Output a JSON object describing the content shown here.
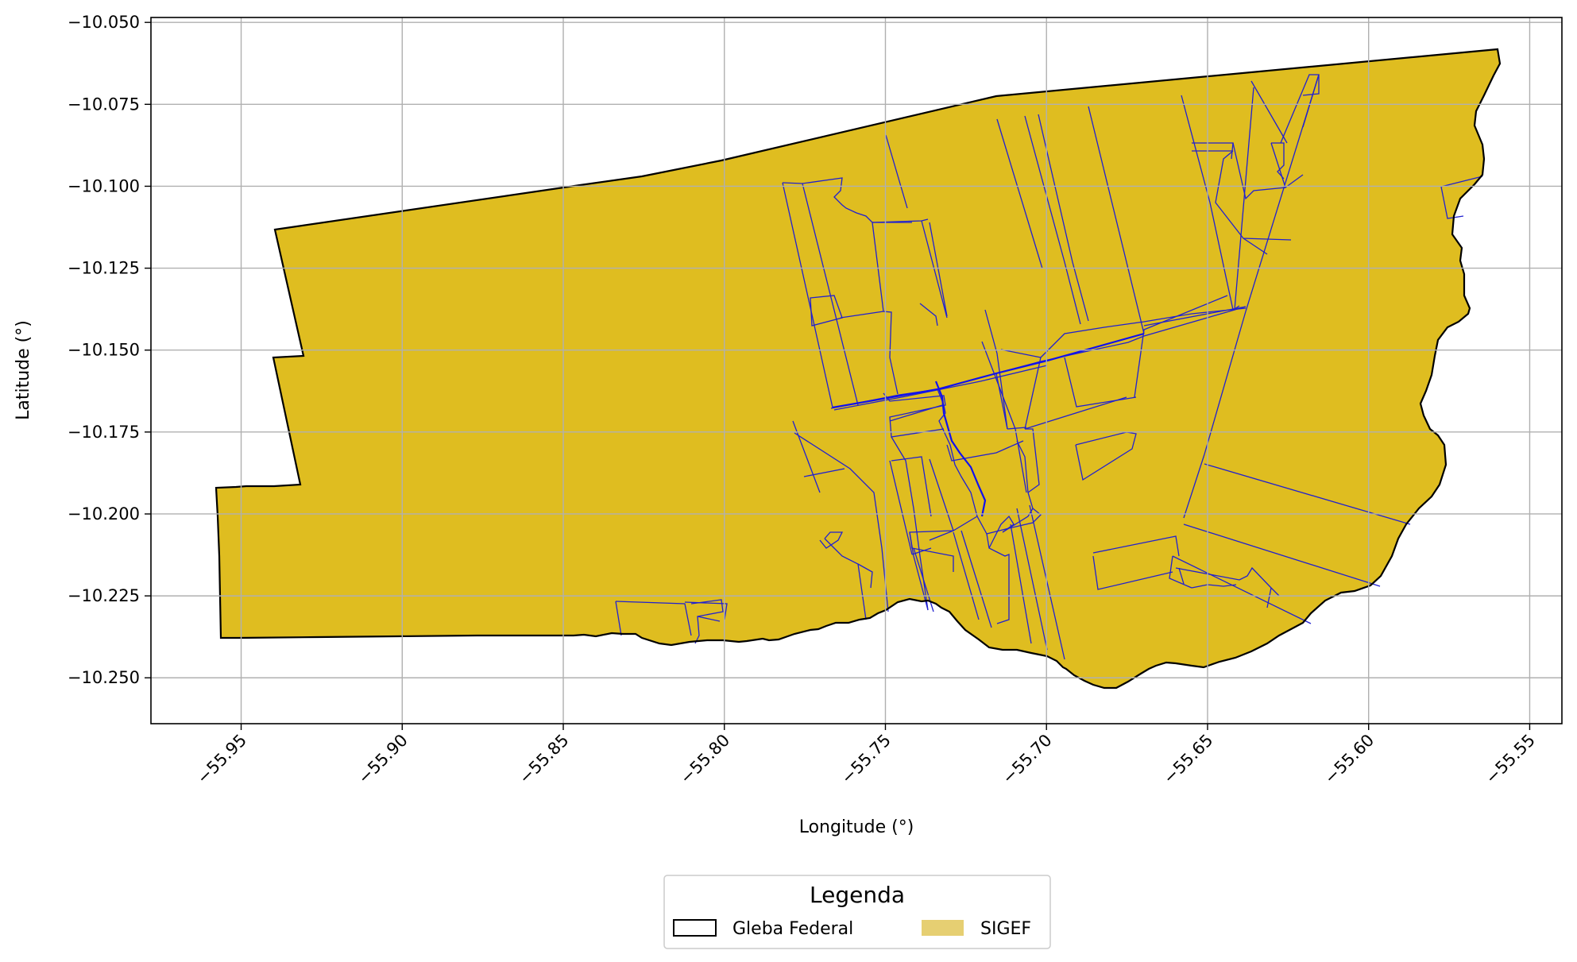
{
  "map": {
    "xlabel": "Longitude (°)",
    "ylabel": "Latitude (°)",
    "xlim": [
      -55.978,
      -55.54
    ],
    "ylim": [
      -10.264,
      -10.0485
    ],
    "xticks": [
      -55.95,
      -55.9,
      -55.85,
      -55.8,
      -55.75,
      -55.7,
      -55.65,
      -55.6,
      -55.55
    ],
    "xtick_labels": [
      "−55.95",
      "−55.90",
      "−55.85",
      "−55.80",
      "−55.75",
      "−55.70",
      "−55.65",
      "−55.60",
      "−55.55"
    ],
    "yticks": [
      -10.05,
      -10.075,
      -10.1,
      -10.125,
      -10.15,
      -10.175,
      -10.2,
      -10.225,
      -10.25
    ],
    "ytick_labels": [
      "−10.050",
      "−10.075",
      "−10.100",
      "−10.125",
      "−10.150",
      "−10.175",
      "−10.200",
      "−10.225",
      "−10.250"
    ],
    "grid": true,
    "colors": {
      "sigef_fill": "#dfbd20",
      "legend_sigef": "#e6cf72",
      "parcel_edge": "#2020d0",
      "boundary": "#000000",
      "grid": "#b0b0b0"
    }
  },
  "legend": {
    "title": "Legenda",
    "items": [
      {
        "label": "Gleba Federal",
        "style": "outline"
      },
      {
        "label": "SIGEF",
        "style": "fill"
      }
    ],
    "placement": "bottom-center"
  },
  "chart_data": {
    "type": "map",
    "layers": [
      {
        "name": "Gleba Federal",
        "style": "outline"
      },
      {
        "name": "SIGEF",
        "style": "fill"
      }
    ]
  }
}
